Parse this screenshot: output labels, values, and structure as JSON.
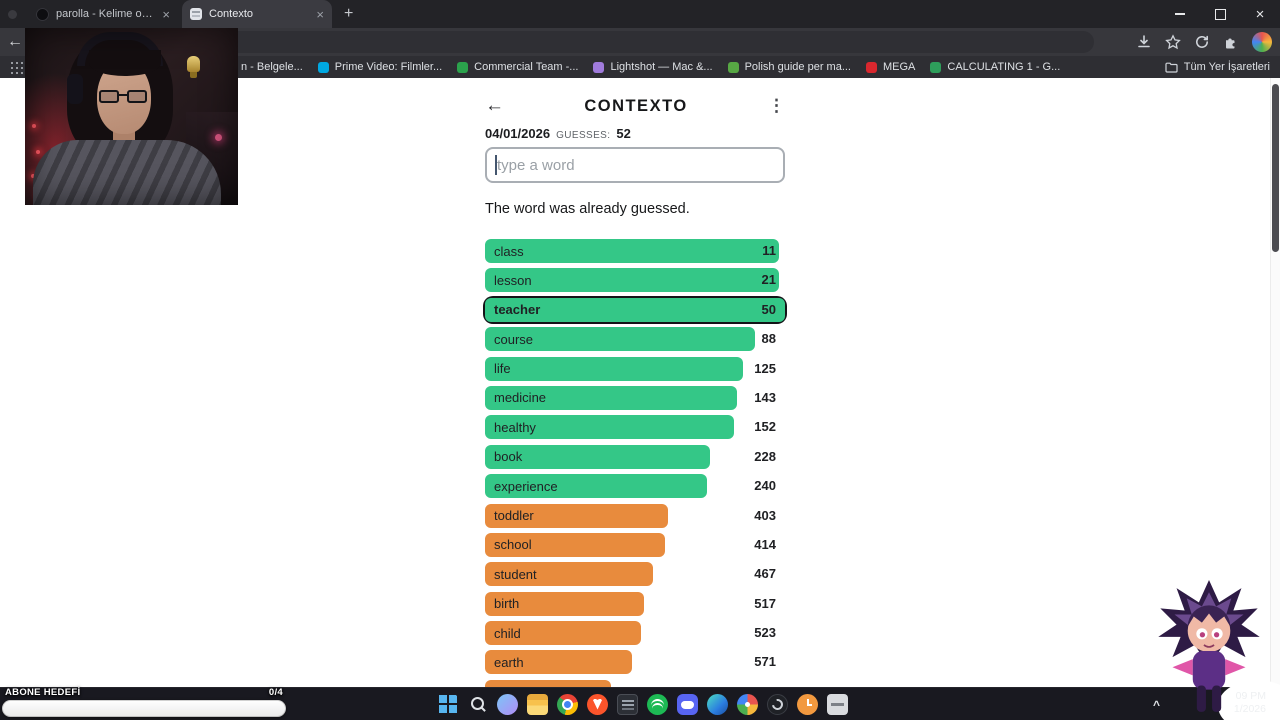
{
  "browser": {
    "tabs": [
      {
        "title": "parolla - Kelime oyunu. Günlü..."
      },
      {
        "title": "Contexto"
      }
    ],
    "bookmarks": [
      {
        "label": "n - Belgele...",
        "color": ""
      },
      {
        "label": "Prime Video: Filmler...",
        "color": "#00a8e1"
      },
      {
        "label": "Commercial Team -...",
        "color": "#2ba24c"
      },
      {
        "label": "Lightshot — Mac &...",
        "color": "#a07bdc"
      },
      {
        "label": "Polish guide per ma...",
        "color": "#57a744"
      },
      {
        "label": "MEGA",
        "color": "#d9272e"
      },
      {
        "label": "CALCULATING 1 - G...",
        "color": "#2e9e5b"
      }
    ],
    "all_bookmarks_label": "Tüm Yer İşaretleri"
  },
  "game": {
    "title": "CONTEXTO",
    "date": "04/01/2026",
    "guesses_label": "GUESSES:",
    "guesses_count": "52",
    "input_placeholder": "type a word",
    "message": "The word was already guessed.",
    "colors": {
      "green": "#34c787",
      "orange": "#e88b3d"
    },
    "rows": [
      {
        "word": "class",
        "rank": "11",
        "pct": 98,
        "tier": "green"
      },
      {
        "word": "lesson",
        "rank": "21",
        "pct": 98,
        "tier": "green"
      },
      {
        "word": "teacher",
        "rank": "50",
        "pct": 100,
        "tier": "green",
        "highlight": true
      },
      {
        "word": "course",
        "rank": "88",
        "pct": 90,
        "tier": "green"
      },
      {
        "word": "life",
        "rank": "125",
        "pct": 86,
        "tier": "green"
      },
      {
        "word": "medicine",
        "rank": "143",
        "pct": 84,
        "tier": "green"
      },
      {
        "word": "healthy",
        "rank": "152",
        "pct": 83,
        "tier": "green"
      },
      {
        "word": "book",
        "rank": "228",
        "pct": 75,
        "tier": "green"
      },
      {
        "word": "experience",
        "rank": "240",
        "pct": 74,
        "tier": "green"
      },
      {
        "word": "toddler",
        "rank": "403",
        "pct": 61,
        "tier": "orange"
      },
      {
        "word": "school",
        "rank": "414",
        "pct": 60,
        "tier": "orange"
      },
      {
        "word": "student",
        "rank": "467",
        "pct": 56,
        "tier": "orange"
      },
      {
        "word": "birth",
        "rank": "517",
        "pct": 53,
        "tier": "orange"
      },
      {
        "word": "child",
        "rank": "523",
        "pct": 52,
        "tier": "orange"
      },
      {
        "word": "earth",
        "rank": "571",
        "pct": 49,
        "tier": "orange"
      },
      {
        "word": "",
        "rank": "",
        "pct": 42,
        "tier": "orange"
      }
    ]
  },
  "stream_overlay": {
    "goal_label": "ABONE HEDEFİ",
    "goal_count": "0/4"
  },
  "taskbar": {
    "icons": [
      {
        "name": "start"
      },
      {
        "name": "search"
      },
      {
        "name": "copilot"
      },
      {
        "name": "file-explorer"
      },
      {
        "name": "chrome"
      },
      {
        "name": "brave"
      },
      {
        "name": "terminal"
      },
      {
        "name": "spotify"
      },
      {
        "name": "discord"
      },
      {
        "name": "edge"
      },
      {
        "name": "photos"
      },
      {
        "name": "obs"
      },
      {
        "name": "clock-widget"
      },
      {
        "name": "ups-widget"
      }
    ],
    "clock_time": "09 PM",
    "clock_date": "1/2026"
  }
}
